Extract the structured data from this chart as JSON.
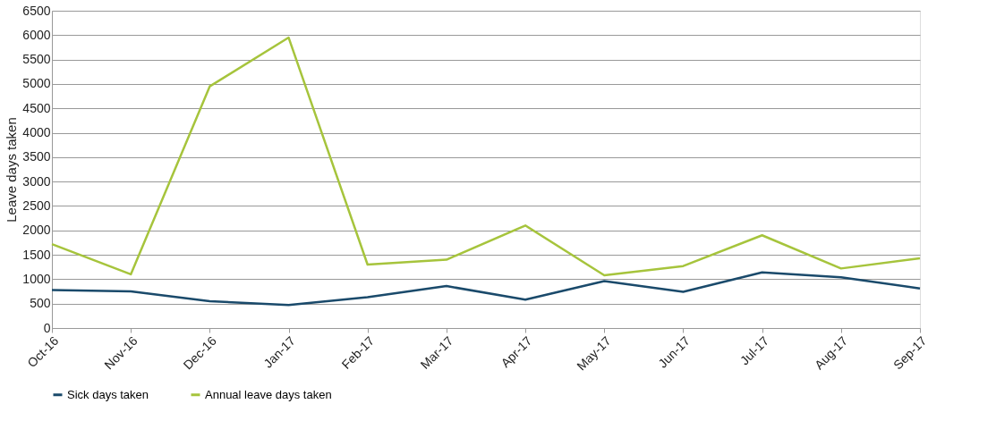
{
  "chart_data": {
    "type": "line",
    "ylabel": "Leave days taken",
    "categories": [
      "Oct-16",
      "Nov-16",
      "Dec-16",
      "Jan-17",
      "Feb-17",
      "Mar-17",
      "Apr-17",
      "May-17",
      "Jun-17",
      "Jul-17",
      "Aug-17",
      "Sep-17"
    ],
    "series": [
      {
        "name": "Sick days taken",
        "color": "#1a4a6b",
        "values": [
          780,
          750,
          550,
          470,
          630,
          860,
          580,
          960,
          740,
          1140,
          1040,
          810
        ]
      },
      {
        "name": "Annual leave days taken",
        "color": "#a6c43c",
        "values": [
          1720,
          1100,
          4950,
          5950,
          1300,
          1400,
          2100,
          1080,
          1270,
          1900,
          1220,
          1430
        ]
      }
    ],
    "ylim": [
      0,
      6500
    ],
    "yticks": [
      0,
      500,
      1000,
      1500,
      2000,
      2500,
      3000,
      3500,
      4000,
      4500,
      5000,
      5500,
      6000,
      6500
    ],
    "grid": "y",
    "legend": "bottom",
    "marker": "none",
    "line_style": "solid"
  }
}
